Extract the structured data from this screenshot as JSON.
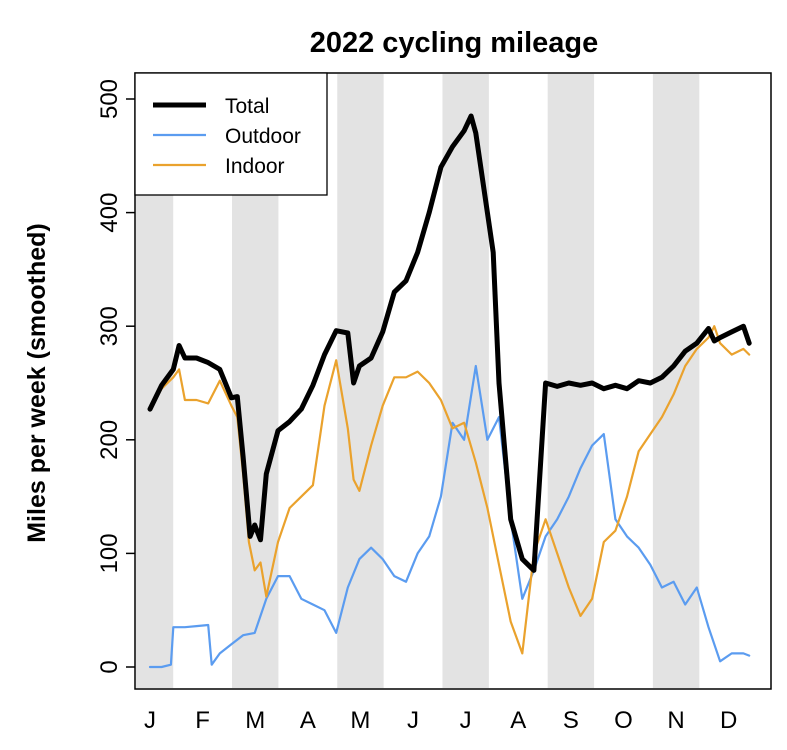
{
  "chart_data": {
    "type": "line",
    "title": "2022 cycling mileage",
    "xlabel": "",
    "ylabel": "Miles per week (smoothed)",
    "ylim": [
      0,
      500
    ],
    "yticks": [
      0,
      100,
      200,
      300,
      400,
      500
    ],
    "x_unit": "week of year",
    "xlim": [
      0,
      52
    ],
    "categories": [
      "J",
      "F",
      "M",
      "A",
      "M",
      "J",
      "J",
      "A",
      "S",
      "O",
      "N",
      "D"
    ],
    "shaded_months": [
      0,
      2,
      4,
      6,
      8,
      10
    ],
    "legend_position": "top-left",
    "series": [
      {
        "name": "Total",
        "color": "#000000",
        "x": [
          0,
          1,
          2,
          2.5,
          3,
          4,
          5,
          6,
          7,
          7.5,
          8,
          8.6,
          9,
          9.5,
          10,
          11,
          12,
          13,
          14,
          15,
          16,
          17,
          17.5,
          18,
          19,
          20,
          21,
          22,
          23,
          24,
          25,
          26,
          27,
          27.6,
          28,
          29,
          29.5,
          30,
          31,
          32,
          33,
          34,
          35,
          36,
          37,
          38,
          39,
          40,
          41,
          42,
          43,
          44,
          45,
          46,
          47,
          48,
          48.5,
          49,
          50,
          51,
          51.5
        ],
        "values": [
          227,
          248,
          262,
          283,
          272,
          272,
          268,
          262,
          237,
          238,
          185,
          115,
          125,
          112,
          170,
          208,
          216,
          227,
          248,
          275,
          296,
          294,
          250,
          265,
          272,
          295,
          330,
          340,
          365,
          400,
          440,
          458,
          472,
          485,
          470,
          400,
          365,
          250,
          130,
          95,
          85,
          250,
          247,
          250,
          248,
          250,
          245,
          248,
          245,
          252,
          250,
          255,
          265,
          278,
          285,
          298,
          287,
          290,
          295,
          300,
          285
        ]
      },
      {
        "name": "Outdoor",
        "color": "#5b9cf0",
        "x": [
          0,
          1,
          1.8,
          2,
          3,
          4,
          5,
          5.3,
          6,
          7,
          8,
          9,
          10,
          11,
          12,
          13,
          14,
          15,
          16,
          17,
          18,
          19,
          20,
          21,
          22,
          23,
          24,
          25,
          26,
          27,
          28,
          29,
          30,
          31,
          32,
          33,
          34,
          35,
          36,
          37,
          38,
          39,
          40,
          41,
          42,
          43,
          44,
          45,
          46,
          47,
          48,
          49,
          50,
          51,
          51.5
        ],
        "values": [
          0,
          0,
          2,
          35,
          35,
          36,
          37,
          2,
          12,
          20,
          28,
          30,
          60,
          80,
          80,
          60,
          55,
          50,
          30,
          70,
          95,
          105,
          95,
          80,
          75,
          100,
          115,
          150,
          215,
          200,
          265,
          200,
          220,
          130,
          60,
          85,
          115,
          130,
          150,
          175,
          195,
          205,
          130,
          115,
          105,
          90,
          70,
          75,
          55,
          70,
          35,
          5,
          12,
          12,
          10
        ]
      },
      {
        "name": "Indoor",
        "color": "#eaa22d",
        "x": [
          0,
          1,
          2,
          2.5,
          3,
          4,
          5,
          6,
          7,
          7.5,
          8,
          8.5,
          9,
          9.5,
          10,
          11,
          12,
          13,
          14,
          15,
          16,
          17,
          17.5,
          18,
          19,
          20,
          21,
          22,
          23,
          24,
          25,
          26,
          27,
          28,
          29,
          30,
          31,
          32,
          33,
          34,
          35,
          36,
          37,
          38,
          39,
          40,
          41,
          42,
          43,
          44,
          45,
          46,
          47,
          48,
          48.5,
          49,
          50,
          51,
          51.5
        ],
        "values": [
          227,
          245,
          255,
          262,
          235,
          235,
          232,
          252,
          230,
          220,
          170,
          110,
          85,
          92,
          62,
          110,
          140,
          150,
          160,
          230,
          270,
          210,
          165,
          155,
          195,
          230,
          255,
          255,
          260,
          250,
          235,
          210,
          215,
          180,
          140,
          90,
          40,
          12,
          100,
          130,
          100,
          70,
          45,
          60,
          110,
          120,
          150,
          190,
          205,
          220,
          240,
          265,
          280,
          290,
          300,
          285,
          275,
          280,
          275
        ]
      }
    ]
  }
}
